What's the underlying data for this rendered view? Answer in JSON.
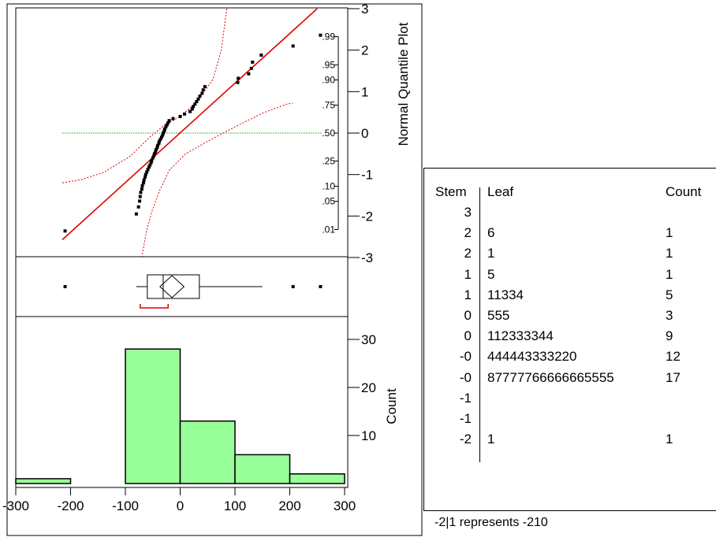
{
  "chart_data": [
    {
      "type": "scatter",
      "name_label": "Normal Quantile Plot",
      "ylabel": "Normal Quantile Plot",
      "x_range": [
        -300,
        300
      ],
      "z_range": [
        -3,
        3
      ],
      "z_ticks": [
        3,
        2,
        1,
        0,
        -1,
        -2,
        -3
      ],
      "prob_ticks": [
        {
          "label": ".99",
          "z": 2.326
        },
        {
          "label": ".95",
          "z": 1.645
        },
        {
          "label": ".90",
          "z": 1.282
        },
        {
          "label": ".75",
          "z": 0.674
        },
        {
          "label": ".50",
          "z": 0
        },
        {
          "label": ".25",
          "z": -0.674
        },
        {
          "label": ".10",
          "z": -1.282
        },
        {
          "label": ".05",
          "z": -1.645
        },
        {
          "label": ".01",
          "z": -2.326
        }
      ],
      "points": [
        [
          -210,
          -2.36
        ],
        [
          -80,
          -1.95
        ],
        [
          -76,
          -1.78
        ],
        [
          -74,
          -1.64
        ],
        [
          -73,
          -1.53
        ],
        [
          -72,
          -1.43
        ],
        [
          -70,
          -1.35
        ],
        [
          -69,
          -1.27
        ],
        [
          -67,
          -1.2
        ],
        [
          -66,
          -1.13
        ],
        [
          -64,
          -1.06
        ],
        [
          -63,
          -1.0
        ],
        [
          -61,
          -0.94
        ],
        [
          -59,
          -0.88
        ],
        [
          -57,
          -0.82
        ],
        [
          -55,
          -0.77
        ],
        [
          -53,
          -0.71
        ],
        [
          -52,
          -0.66
        ],
        [
          -50,
          -0.6
        ],
        [
          -48,
          -0.55
        ],
        [
          -47,
          -0.5
        ],
        [
          -45,
          -0.45
        ],
        [
          -44,
          -0.4
        ],
        [
          -42,
          -0.35
        ],
        [
          -41,
          -0.3
        ],
        [
          -39,
          -0.25
        ],
        [
          -38,
          -0.2
        ],
        [
          -36,
          -0.15
        ],
        [
          -34,
          -0.1
        ],
        [
          -32,
          -0.05
        ],
        [
          -31,
          0.0
        ],
        [
          -29,
          0.05
        ],
        [
          -28,
          0.1
        ],
        [
          -26,
          0.15
        ],
        [
          -24,
          0.2
        ],
        [
          -22,
          0.25
        ],
        [
          -20,
          0.3
        ],
        [
          -13,
          0.35
        ],
        [
          0,
          0.4
        ],
        [
          8,
          0.46
        ],
        [
          18,
          0.52
        ],
        [
          22,
          0.58
        ],
        [
          24,
          0.64
        ],
        [
          27,
          0.7
        ],
        [
          30,
          0.76
        ],
        [
          33,
          0.82
        ],
        [
          36,
          0.89
        ],
        [
          40,
          0.96
        ],
        [
          42,
          1.04
        ],
        [
          45,
          1.12
        ],
        [
          105,
          1.22
        ],
        [
          106,
          1.32
        ],
        [
          125,
          1.43
        ],
        [
          130,
          1.56
        ],
        [
          132,
          1.71
        ],
        [
          148,
          1.88
        ],
        [
          206,
          2.1
        ],
        [
          256,
          2.36
        ]
      ],
      "fit_line": [
        [
          -215,
          -2.57
        ],
        [
          250,
          3.0
        ]
      ],
      "band_upper": [
        [
          -70,
          -3
        ],
        [
          -62,
          -2.4
        ],
        [
          -52,
          -1.9
        ],
        [
          -38,
          -1.4
        ],
        [
          -20,
          -0.9
        ],
        [
          10,
          -0.5
        ],
        [
          50,
          -0.2
        ],
        [
          100,
          0.15
        ],
        [
          150,
          0.48
        ],
        [
          195,
          0.7
        ],
        [
          205,
          0.72
        ]
      ],
      "band_lower": [
        [
          -215,
          -1.2
        ],
        [
          -180,
          -1.12
        ],
        [
          -140,
          -0.95
        ],
        [
          -90,
          -0.55
        ],
        [
          -60,
          -0.15
        ],
        [
          -30,
          0.18
        ],
        [
          0,
          0.4
        ],
        [
          30,
          0.75
        ],
        [
          60,
          1.3
        ],
        [
          75,
          2.0
        ],
        [
          85,
          3.0
        ]
      ],
      "median_line_z": 0
    },
    {
      "type": "box",
      "outliers": [
        -210,
        206,
        256
      ],
      "whisker_low": -80,
      "q1": -60,
      "median": -31,
      "q3": 35,
      "whisker_high": 150,
      "mean": -15,
      "mean_diamond_halfwidth": 22,
      "shortest_half": [
        -73,
        -22
      ]
    },
    {
      "type": "bar",
      "ylabel": "Count",
      "x_ticks": [
        -300,
        -200,
        -100,
        0,
        100,
        200,
        300
      ],
      "y_ticks": [
        10,
        20,
        30
      ],
      "ylim": [
        0,
        32
      ],
      "bins": [
        {
          "from": -300,
          "to": -200,
          "count": 1
        },
        {
          "from": -200,
          "to": -100,
          "count": 0
        },
        {
          "from": -100,
          "to": 0,
          "count": 28
        },
        {
          "from": 0,
          "to": 100,
          "count": 13
        },
        {
          "from": 100,
          "to": 200,
          "count": 6
        },
        {
          "from": 200,
          "to": 300,
          "count": 2
        }
      ],
      "bar_color": "#99ff99"
    }
  ],
  "stem_leaf": {
    "headers": {
      "stem": "Stem",
      "leaf": "Leaf",
      "count": "Count"
    },
    "rows": [
      {
        "stem": "3",
        "leaf": "",
        "count": ""
      },
      {
        "stem": "2",
        "leaf": "6",
        "count": "1"
      },
      {
        "stem": "2",
        "leaf": "1",
        "count": "1"
      },
      {
        "stem": "1",
        "leaf": "5",
        "count": "1"
      },
      {
        "stem": "1",
        "leaf": "11334",
        "count": "5"
      },
      {
        "stem": "0",
        "leaf": "555",
        "count": "3"
      },
      {
        "stem": "0",
        "leaf": "112333344",
        "count": "9"
      },
      {
        "stem": "-0",
        "leaf": "444443333220",
        "count": "12"
      },
      {
        "stem": "-0",
        "leaf": "87777766666665555",
        "count": "17"
      },
      {
        "stem": "-1",
        "leaf": "",
        "count": ""
      },
      {
        "stem": "-1",
        "leaf": "",
        "count": ""
      },
      {
        "stem": "-2",
        "leaf": "1",
        "count": "1"
      }
    ],
    "note": "-2|1 represents -210"
  },
  "colors": {
    "fit_line": "#e00000",
    "band": "#e00000",
    "median_line": "#00b000",
    "bar": "#99ff99"
  }
}
